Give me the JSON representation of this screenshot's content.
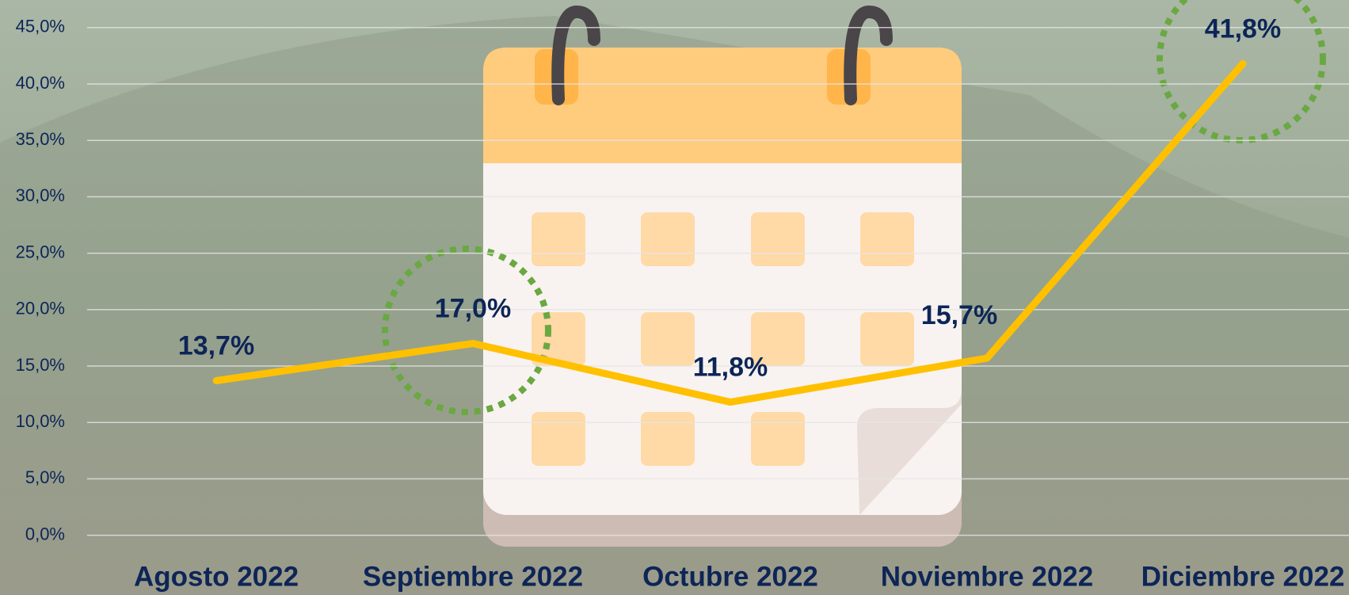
{
  "chart_data": {
    "type": "line",
    "categories": [
      "Agosto 2022",
      "Septiembre 2022",
      "Octubre 2022",
      "Noviembre 2022",
      "Diciembre 2022"
    ],
    "series": [
      {
        "name": "",
        "color": "#ffc000",
        "values": [
          13.7,
          17.0,
          11.8,
          15.7,
          41.8
        ],
        "value_labels": [
          "13,7%",
          "17,0%",
          "11,8%",
          "15,7%",
          "41,8%"
        ]
      }
    ],
    "ylim": [
      0,
      45
    ],
    "yticks": [
      {
        "value": 0,
        "label": "0,0%"
      },
      {
        "value": 5,
        "label": "5,0%"
      },
      {
        "value": 10,
        "label": "10,0%"
      },
      {
        "value": 15,
        "label": "15,0%"
      },
      {
        "value": 20,
        "label": "20,0%"
      },
      {
        "value": 25,
        "label": "25,0%"
      },
      {
        "value": 30,
        "label": "30,0%"
      },
      {
        "value": 35,
        "label": "35,0%"
      },
      {
        "value": 40,
        "label": "40,0%"
      },
      {
        "value": 45,
        "label": "45,0%"
      }
    ],
    "grid": true
  }
}
